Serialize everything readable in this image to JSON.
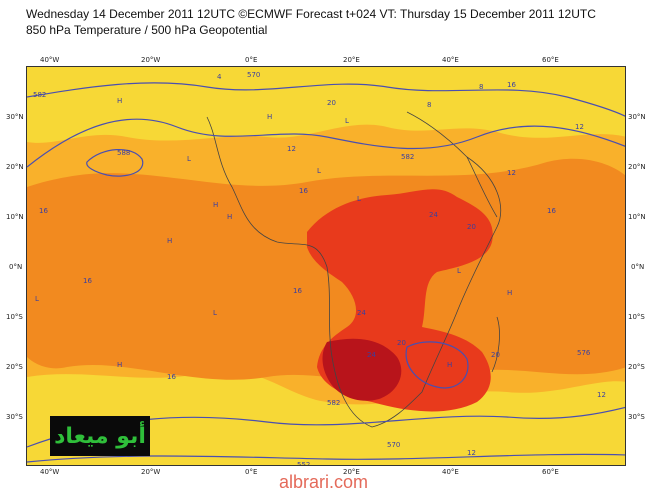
{
  "header": {
    "line1": "Wednesday 14 December 2011 12UTC ©ECMWF Forecast t+024 VT: Thursday 15 December 2011 12UTC",
    "line2": "850 hPa Temperature / 500 hPa Geopotential"
  },
  "axes": {
    "lon_labels": [
      "40°W",
      "20°W",
      "0°E",
      "20°E",
      "40°E",
      "60°E"
    ],
    "lat_labels_left": [
      "30°N",
      "20°N",
      "10°N",
      "0°N",
      "10°S",
      "20°S",
      "30°S"
    ],
    "lat_labels_right": [
      "30°N",
      "20°N",
      "10°N",
      "0°N",
      "10°S",
      "20°S",
      "30°S"
    ]
  },
  "contour_labels": [
    "582",
    "582",
    "570",
    "588",
    "12",
    "16",
    "16",
    "20",
    "24",
    "16",
    "12",
    "16",
    "16",
    "16",
    "20",
    "24",
    "24",
    "20",
    "20",
    "12",
    "12",
    "552",
    "570",
    "582",
    "576",
    "12",
    "16",
    "8",
    "4",
    "8"
  ],
  "pressure_marks": [
    "H",
    "H",
    "H",
    "L",
    "L",
    "L",
    "H",
    "L",
    "H",
    "L",
    "H",
    "L",
    "H",
    "L",
    "H"
  ],
  "colors": {
    "shade_yellow": "#f7d836",
    "shade_light_orange": "#f9b12b",
    "shade_orange": "#f28a1f",
    "shade_red": "#e83a1c",
    "shade_dark_red": "#b8141b",
    "contour_line": "#4a4fb0",
    "coast_line": "#444444"
  },
  "logo_text": "أبو ميعاد",
  "watermark": "albrari.com"
}
